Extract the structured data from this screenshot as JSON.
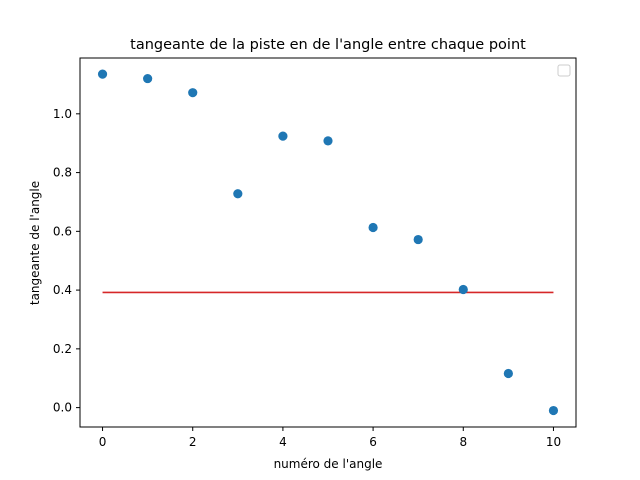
{
  "chart_data": {
    "type": "scatter",
    "title": "tangeante de la piste en de l'angle entre chaque point",
    "xlabel": "numéro de l'angle",
    "ylabel": "tangeante de l'angle",
    "xlim": [
      -0.5,
      10.5
    ],
    "ylim": [
      -0.066,
      1.19
    ],
    "x_ticks": [
      0,
      2,
      4,
      6,
      8,
      10
    ],
    "x_tick_labels": [
      "0",
      "2",
      "4",
      "6",
      "8",
      "10"
    ],
    "y_ticks": [
      0.0,
      0.2,
      0.4,
      0.6,
      0.8,
      1.0
    ],
    "y_tick_labels": [
      "0.0",
      "0.2",
      "0.4",
      "0.6",
      "0.8",
      "1.0"
    ],
    "grid": false,
    "legend": {
      "placement": "upper right",
      "entries": []
    },
    "series": [
      {
        "kind": "scatter",
        "color": "#1f77b4",
        "x": [
          0,
          1,
          2,
          3,
          4,
          5,
          6,
          7,
          8,
          9,
          10
        ],
        "y": [
          1.135,
          1.12,
          1.072,
          0.728,
          0.924,
          0.908,
          0.613,
          0.572,
          0.402,
          0.116,
          -0.01
        ]
      },
      {
        "kind": "line",
        "color": "#d62728",
        "x": [
          0,
          10
        ],
        "y": [
          0.392,
          0.392
        ]
      }
    ]
  }
}
